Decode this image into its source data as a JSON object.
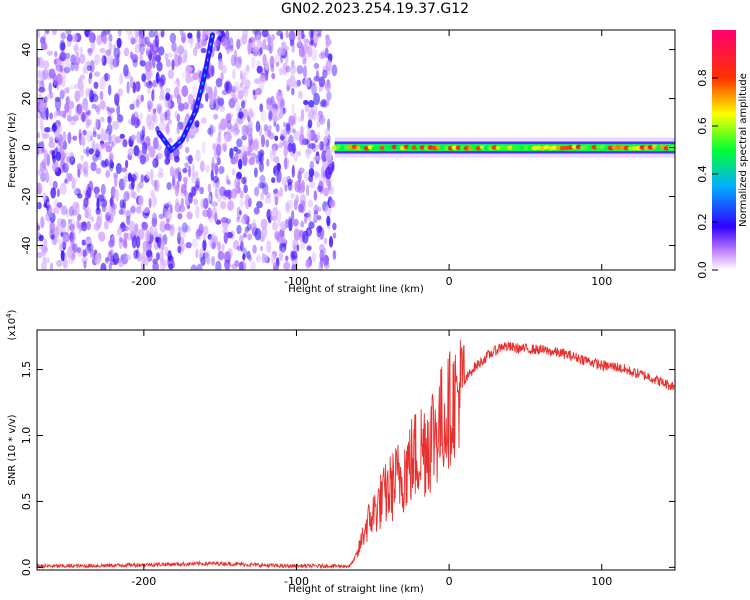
{
  "title": "GN02.2023.254.19.37.G12",
  "chart_data": [
    {
      "type": "heatmap",
      "xlabel": "Height of straight line (km)",
      "ylabel": "Frequency (Hz)",
      "xlim": [
        -270,
        148
      ],
      "ylim": [
        -50,
        48
      ],
      "xticks": [
        -200,
        -100,
        0,
        100
      ],
      "yticks": [
        -40,
        -20,
        0,
        20,
        40
      ],
      "colorbar": {
        "label": "Normalized spectral amplitude",
        "range": [
          0,
          1
        ],
        "ticks": [
          "0.0",
          "0.2",
          "0.4",
          "0.6",
          "0.8"
        ],
        "colors": [
          "#ffffff",
          "#a000ff",
          "#2000ff",
          "#00c0ff",
          "#00ff40",
          "#ffff00",
          "#ff4000",
          "#ff0080"
        ]
      },
      "ridge": {
        "description_points": [
          {
            "x": -155,
            "y": 46
          },
          {
            "x": -160,
            "y": 30
          },
          {
            "x": -166,
            "y": 15
          },
          {
            "x": -175,
            "y": 3
          },
          {
            "x": -182,
            "y": -1
          },
          {
            "x": -190,
            "y": 6
          }
        ],
        "band_center_y": 0,
        "band_start_x": -75
      }
    },
    {
      "type": "line",
      "xlabel": "Height of straight line (km)",
      "ylabel": "SNR (10 * v/v)",
      "yscale_label": "(x10",
      "yscale_exp": "4",
      "yscale_close": ")",
      "xlim": [
        -270,
        148
      ],
      "ylim": [
        -0.02,
        1.8
      ],
      "xticks": [
        -200,
        -100,
        0,
        100
      ],
      "yticks": [
        "0.0",
        "0.5",
        "1.0",
        "1.5"
      ],
      "ytick_values": [
        0,
        0.5,
        1.0,
        1.5
      ],
      "series": [
        {
          "color": "#e8312f",
          "x": [
            -270,
            -240,
            -200,
            -150,
            -110,
            -80,
            -65,
            -60,
            -55,
            -45,
            -35,
            -25,
            -15,
            -5,
            5,
            15,
            25,
            35,
            45,
            60,
            75,
            90,
            100,
            110,
            120,
            130,
            140,
            148
          ],
          "y": [
            0.01,
            0.01,
            0.02,
            0.03,
            0.01,
            0.01,
            0.01,
            0.1,
            0.3,
            0.5,
            0.65,
            0.8,
            0.95,
            1.1,
            1.3,
            1.5,
            1.6,
            1.68,
            1.66,
            1.65,
            1.62,
            1.57,
            1.53,
            1.52,
            1.48,
            1.45,
            1.4,
            1.37
          ]
        }
      ]
    }
  ]
}
